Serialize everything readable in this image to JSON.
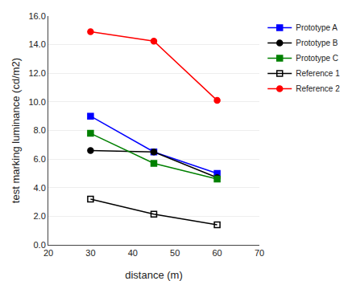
{
  "chart_data": {
    "type": "line",
    "xlabel": "distance (m)",
    "ylabel": "test marking luminance (cd/m2)",
    "x": [
      30,
      45,
      60
    ],
    "xlim": [
      20,
      70
    ],
    "xticks": [
      20,
      30,
      40,
      50,
      60,
      70
    ],
    "ylim": [
      0,
      16
    ],
    "yticks": [
      {
        "value": 0,
        "label": "0.0"
      },
      {
        "value": 2,
        "label": "2.0"
      },
      {
        "value": 4,
        "label": "4.0"
      },
      {
        "value": 6,
        "label": "6.0"
      },
      {
        "value": 8,
        "label": "8.0"
      },
      {
        "value": 10,
        "label": "10.0"
      },
      {
        "value": 12,
        "label": "12.0"
      },
      {
        "value": 14,
        "label": "14.0"
      },
      {
        "value": 16,
        "label": "16.0"
      }
    ],
    "grid": "y",
    "legend": "upper right",
    "series": [
      {
        "name": "Prototype A",
        "color": "#0000FF",
        "marker": "square",
        "values": [
          9.0,
          6.5,
          5.0
        ]
      },
      {
        "name": "Prototype B",
        "color": "#000000",
        "marker": "circle",
        "values": [
          6.6,
          6.5,
          4.7
        ]
      },
      {
        "name": "Prototype C",
        "color": "#008000",
        "marker": "square",
        "values": [
          7.8,
          5.7,
          4.6
        ]
      },
      {
        "name": "Reference 1",
        "color": "#000000",
        "marker": "square-open",
        "values": [
          3.2,
          2.15,
          1.4
        ]
      },
      {
        "name": "Reference 2",
        "color": "#FF0000",
        "marker": "circle",
        "values": [
          14.9,
          14.25,
          10.1
        ]
      }
    ]
  }
}
